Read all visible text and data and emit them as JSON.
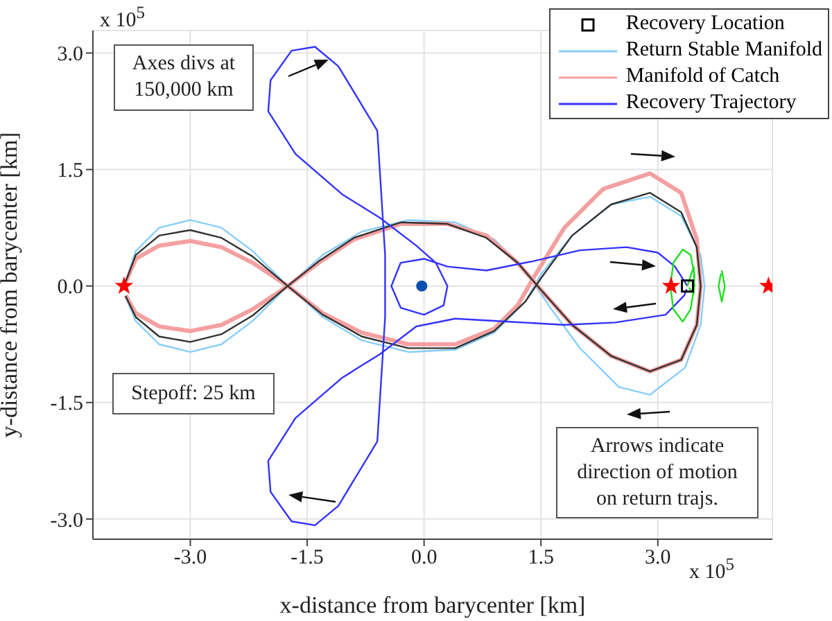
{
  "chart_data": {
    "type": "line",
    "xlabel": "x-distance from barycenter [km]",
    "ylabel": "y-distance from barycenter [km]",
    "xlim": [
      -4.25,
      4.47
    ],
    "ylim": [
      -3.26,
      3.29
    ],
    "xticks": [
      {
        "value": -3,
        "label": "-3.0"
      },
      {
        "value": -1.5,
        "label": "-1.5"
      },
      {
        "value": 0,
        "label": "0.0"
      },
      {
        "value": 1.5,
        "label": "1.5"
      },
      {
        "value": 3,
        "label": "3.0"
      }
    ],
    "yticks": [
      {
        "value": -3,
        "label": "-3.0"
      },
      {
        "value": -1.5,
        "label": "-1.5"
      },
      {
        "value": 0,
        "label": "0.0"
      },
      {
        "value": 1.5,
        "label": "1.5"
      },
      {
        "value": 3,
        "label": "3.0"
      }
    ],
    "grid": true,
    "legend": "top right",
    "annotations": [
      "x 10$^{5}$",
      "Axes divs at 150,000 km",
      "Stepoff: 25 km",
      "Arrows indicate direction of motion on return trajs.",
      "x 10$^{5}$"
    ],
    "series": [
      {
        "name": "Recovery Location",
        "type": "scatter",
        "marker": "square",
        "color": "#000000",
        "x": [
          3.38
        ],
        "values": [
          0
        ]
      },
      {
        "name": "Return Stable Manifold",
        "color": "#87cefa",
        "x": [
          -3.85,
          -3.7,
          -3.4,
          -3.0,
          -2.6,
          -2.2,
          -1.75,
          -1.3,
          -0.8,
          -0.2,
          0.4,
          0.9,
          1.3,
          1.5,
          1.9,
          2.4,
          2.9,
          3.3,
          3.55,
          3.6,
          3.55,
          3.35,
          2.9,
          2.5,
          2.0,
          1.6,
          1.3,
          0.9,
          0.4,
          -0.2,
          -0.8,
          -1.3,
          -1.75,
          -2.2,
          -2.6,
          -3.0,
          -3.4,
          -3.7,
          -3.83
        ],
        "values": [
          0,
          0.45,
          0.75,
          0.85,
          0.75,
          0.45,
          0,
          -0.4,
          -0.7,
          -0.85,
          -0.82,
          -0.6,
          -0.2,
          0.15,
          0.65,
          1.05,
          1.15,
          0.9,
          0.4,
          0,
          -0.5,
          -1.05,
          -1.4,
          -1.3,
          -0.8,
          -0.25,
          0.2,
          0.6,
          0.82,
          0.85,
          0.7,
          0.4,
          0,
          -0.45,
          -0.75,
          -0.85,
          -0.75,
          -0.45,
          -0.15
        ]
      },
      {
        "name": "Manifold of Catch",
        "color": "#f4a0a0",
        "x": [
          -3.85,
          -3.7,
          -3.4,
          -3.0,
          -2.6,
          -2.2,
          -1.75,
          -1.3,
          -0.8,
          -0.2,
          0.4,
          0.9,
          1.2,
          1.4,
          1.8,
          2.3,
          2.9,
          3.3,
          3.5,
          3.55,
          3.5,
          3.3,
          2.9,
          2.4,
          1.9,
          1.5,
          1.2,
          0.8,
          0.3,
          -0.3,
          -0.9,
          -1.35,
          -1.75,
          -2.2,
          -2.6,
          -3.0,
          -3.4,
          -3.7,
          -3.83
        ],
        "values": [
          0,
          0.35,
          0.52,
          0.58,
          0.5,
          0.3,
          0,
          -0.35,
          -0.6,
          -0.75,
          -0.75,
          -0.55,
          -0.25,
          0.1,
          0.75,
          1.25,
          1.45,
          1.2,
          0.6,
          0,
          -0.5,
          -0.95,
          -1.1,
          -0.9,
          -0.5,
          -0.05,
          0.3,
          0.65,
          0.8,
          0.8,
          0.6,
          0.3,
          0,
          -0.3,
          -0.5,
          -0.58,
          -0.52,
          -0.35,
          -0.12
        ]
      },
      {
        "color": "#333333",
        "x": [
          -3.85,
          -3.7,
          -3.4,
          -3.0,
          -2.6,
          -2.2,
          -1.75,
          -1.3,
          -0.8,
          -0.2,
          0.4,
          0.9,
          1.3,
          1.5,
          1.9,
          2.4,
          2.9,
          3.3,
          3.5,
          3.55,
          3.5,
          3.3,
          2.9,
          2.4,
          1.9,
          1.5,
          1.2,
          0.8,
          0.3,
          -0.3,
          -0.9,
          -1.35,
          -1.75,
          -2.2,
          -2.6,
          -3.0,
          -3.4,
          -3.7,
          -3.83
        ],
        "values": [
          0,
          0.4,
          0.65,
          0.72,
          0.62,
          0.38,
          0,
          -0.37,
          -0.65,
          -0.8,
          -0.8,
          -0.58,
          -0.2,
          0.1,
          0.65,
          1.05,
          1.2,
          0.95,
          0.5,
          0,
          -0.5,
          -0.95,
          -1.1,
          -0.9,
          -0.5,
          -0.05,
          0.3,
          0.62,
          0.8,
          0.82,
          0.62,
          0.32,
          0,
          -0.38,
          -0.62,
          -0.72,
          -0.65,
          -0.4,
          -0.13
        ]
      },
      {
        "name": "Recovery Trajectory",
        "color": "#3333ff",
        "x": [
          3.38,
          3.22,
          3.0,
          2.6,
          2.0,
          1.4,
          0.8,
          0.3,
          0,
          -0.3,
          -0.42,
          -0.3,
          0,
          0.25,
          0.3,
          0.15,
          -0.1,
          -0.57,
          -1.05,
          -1.65,
          -2.0,
          -1.97,
          -1.7,
          -1.4,
          -1.1,
          -0.6,
          -0.55,
          -0.5,
          -0.5,
          -0.55,
          -0.6,
          -1.1,
          -1.4,
          -1.7,
          -1.97,
          -2.0,
          -1.65,
          -1.05,
          -0.57,
          -0.1,
          0.4,
          1.1,
          1.8,
          2.45,
          3.1,
          3.34,
          3.37
        ],
        "values": [
          0,
          0.25,
          0.43,
          0.5,
          0.46,
          0.32,
          0.2,
          0.25,
          0.35,
          0.3,
          0,
          -0.28,
          -0.37,
          -0.25,
          0,
          0.3,
          0.52,
          0.88,
          1.18,
          1.7,
          2.25,
          2.65,
          3.03,
          3.08,
          2.83,
          2.0,
          1.2,
          0.4,
          -0.4,
          -1.2,
          -2.0,
          -2.83,
          -3.08,
          -3.03,
          -2.65,
          -2.25,
          -1.7,
          -1.18,
          -0.88,
          -0.52,
          -0.42,
          -0.46,
          -0.5,
          -0.47,
          -0.37,
          -0.12,
          -0.04
        ]
      },
      {
        "color": "#22dd22",
        "x": [
          3.38,
          3.46,
          3.47,
          3.42,
          3.32,
          3.2,
          3.16,
          3.2,
          3.32,
          3.42,
          3.47,
          3.46,
          3.4
        ],
        "values": [
          0,
          0.25,
          0.0,
          -0.3,
          -0.46,
          -0.3,
          0,
          0.3,
          0.47,
          0.4,
          0.15,
          -0.1,
          -0.02
        ]
      },
      {
        "color": "#22dd22",
        "x": [
          3.82,
          3.86,
          3.82,
          3.78,
          3.81
        ],
        "values": [
          0.2,
          0,
          -0.2,
          0,
          0.16
        ]
      },
      {
        "type": "scatter",
        "marker": "star",
        "color": "#ff0000",
        "x": [
          -3.85,
          3.17,
          4.42
        ],
        "values": [
          0,
          0,
          0
        ]
      },
      {
        "type": "scatter",
        "marker": "circle",
        "color": "#0a4fb0",
        "x": [
          -0.03
        ],
        "values": [
          0
        ]
      }
    ]
  }
}
